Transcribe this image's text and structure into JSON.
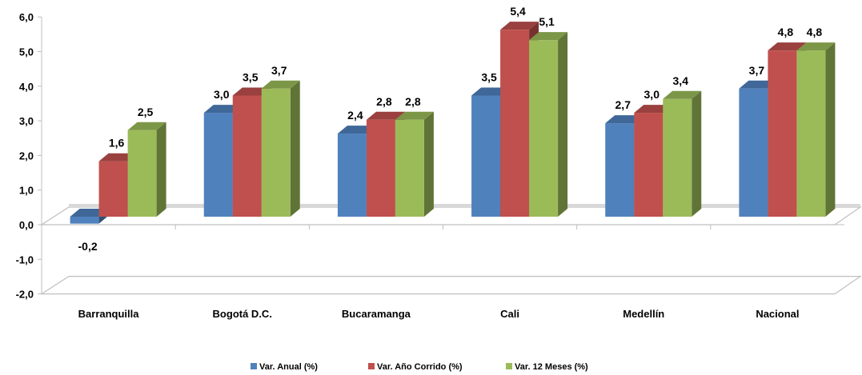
{
  "chart_data": {
    "type": "bar",
    "categories": [
      "Barranquilla",
      "Bogotá D.C.",
      "Bucaramanga",
      "Cali",
      "Medellín",
      "Nacional"
    ],
    "series": [
      {
        "name": "Var. Anual (%)",
        "color": "#4F81BD",
        "values": [
          -0.2,
          3.0,
          2.4,
          3.5,
          2.7,
          3.7
        ]
      },
      {
        "name": "Var. Año Corrido (%)",
        "color": "#C0504D",
        "values": [
          1.6,
          3.5,
          2.8,
          5.4,
          3.0,
          4.8
        ]
      },
      {
        "name": "Var. 12 Meses (%)",
        "color": "#9BBB59",
        "values": [
          2.5,
          3.7,
          2.8,
          5.1,
          3.4,
          4.8
        ]
      }
    ],
    "data_labels": [
      [
        "-0,2",
        "3,0",
        "2,4",
        "3,5",
        "2,7",
        "3,7"
      ],
      [
        "1,6",
        "3,5",
        "2,8",
        "5,4",
        "3,0",
        "4,8"
      ],
      [
        "2,5",
        "3,7",
        "2,8",
        "5,1",
        "3,4",
        "4,8"
      ]
    ],
    "yticks": [
      "-2,0",
      "-1,0",
      "0,0",
      "1,0",
      "2,0",
      "3,0",
      "4,0",
      "5,0",
      "6,0"
    ],
    "ylim": [
      -2,
      6
    ],
    "legend_position": "bottom",
    "style": "3d-clustered-column"
  }
}
